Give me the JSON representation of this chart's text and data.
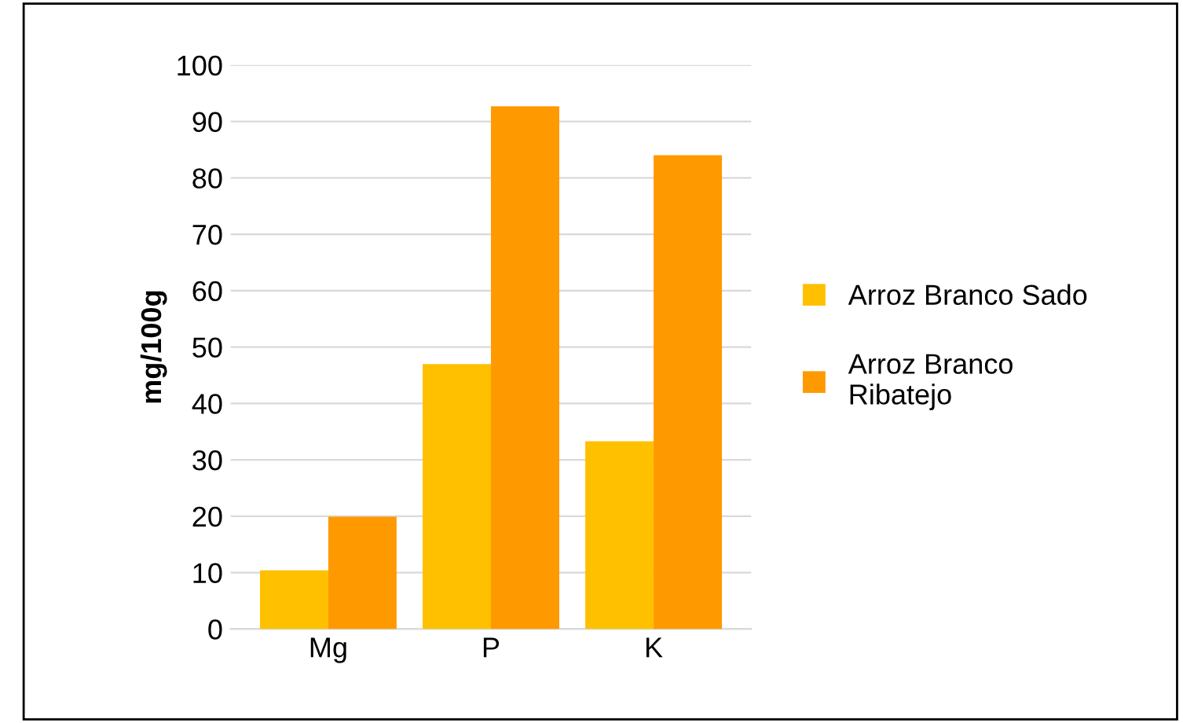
{
  "chart_data": {
    "type": "bar",
    "ylabel": "mg/100g",
    "categories": [
      "Mg",
      "P",
      "K"
    ],
    "series": [
      {
        "name": "Arroz Branco Sado",
        "color": "#ffc000",
        "values": [
          10.4,
          47,
          33.3
        ]
      },
      {
        "name": "Arroz Branco\nRibatejo",
        "color": "#ff9900",
        "values": [
          19.9,
          92.7,
          84
        ]
      }
    ],
    "ylim": [
      0,
      100
    ],
    "yticks": [
      0,
      10,
      20,
      30,
      40,
      50,
      60,
      70,
      80,
      90,
      100
    ],
    "grid": "y",
    "legend": "right"
  }
}
